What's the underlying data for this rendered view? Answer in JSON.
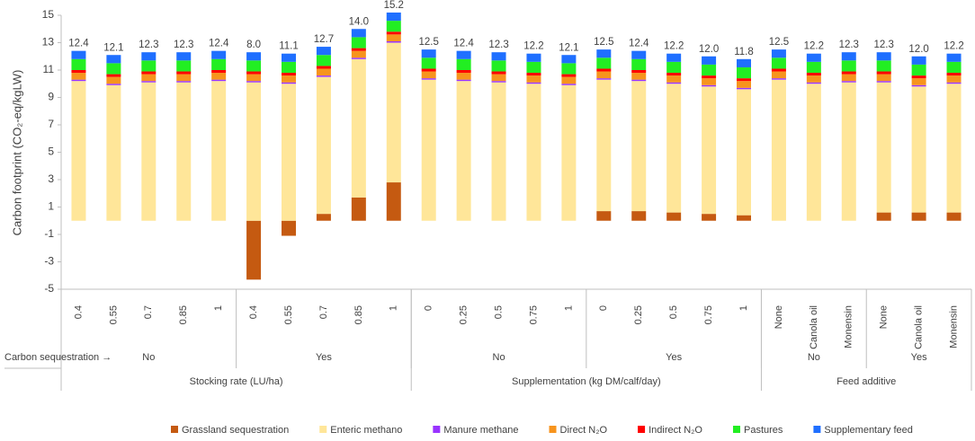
{
  "chart_data": {
    "type": "stacked_bar",
    "y_label": "Carbon footprint (CO₂-eq/kgLW)",
    "ylim": [
      -5,
      15
    ],
    "yticks": [
      -5,
      -3,
      -1,
      1,
      3,
      5,
      7,
      9,
      11,
      13,
      15
    ],
    "categories": [
      "0.4",
      "0.55",
      "0.7",
      "0.85",
      "1",
      "0.4",
      "0.55",
      "0.7",
      "0.85",
      "1",
      "0",
      "0.25",
      "0.5",
      "0.75",
      "1",
      "0",
      "0.25",
      "0.5",
      "0.75",
      "1",
      "None",
      "Canola oil",
      "Monensin",
      "None",
      "Canola oil",
      "Monensin"
    ],
    "group_axis_label": "Carbon sequestration →",
    "sequestration_groups": [
      {
        "label": "No",
        "size": 5
      },
      {
        "label": "Yes",
        "size": 5
      },
      {
        "label": "No",
        "size": 5
      },
      {
        "label": "Yes",
        "size": 5
      },
      {
        "label": "No",
        "size": 3
      },
      {
        "label": "Yes",
        "size": 3
      }
    ],
    "factor_groups": [
      {
        "label": "Stocking rate (LU/ha)",
        "size": 10
      },
      {
        "label": "Supplementation (kg DM/calf/day)",
        "size": 10
      },
      {
        "label": "Feed additive",
        "size": 6
      }
    ],
    "series": [
      {
        "name": "Grassland sequestration",
        "color": "#c55a11",
        "values": [
          0,
          0,
          0,
          0,
          0,
          -4.3,
          -1.1,
          0.5,
          1.7,
          2.8,
          0,
          0,
          0,
          0,
          0,
          0.7,
          0.7,
          0.6,
          0.5,
          0.4,
          0,
          0,
          0,
          0.6,
          0.6,
          0.6
        ]
      },
      {
        "name": "Enteric methano",
        "color": "#ffe699",
        "values": [
          10.2,
          9.9,
          10.1,
          10.1,
          10.2,
          10.1,
          10.0,
          10.0,
          10.1,
          10.2,
          10.3,
          10.2,
          10.1,
          10.0,
          9.9,
          9.6,
          9.5,
          9.4,
          9.3,
          9.2,
          10.3,
          10.0,
          10.1,
          9.5,
          9.2,
          9.4
        ]
      },
      {
        "name": "Manure methane",
        "color": "#9933ff",
        "values": [
          0.1,
          0.1,
          0.1,
          0.1,
          0.1,
          0.1,
          0.1,
          0.1,
          0.1,
          0.1,
          0.1,
          0.1,
          0.1,
          0.1,
          0.1,
          0.1,
          0.1,
          0.1,
          0.1,
          0.1,
          0.1,
          0.1,
          0.1,
          0.1,
          0.1,
          0.1
        ]
      },
      {
        "name": "Direct N₂O",
        "color": "#f7941d",
        "values": [
          0.5,
          0.5,
          0.5,
          0.5,
          0.5,
          0.5,
          0.5,
          0.5,
          0.5,
          0.5,
          0.5,
          0.5,
          0.5,
          0.5,
          0.5,
          0.5,
          0.5,
          0.5,
          0.5,
          0.5,
          0.5,
          0.5,
          0.5,
          0.5,
          0.5,
          0.5
        ]
      },
      {
        "name": "Indirect N₂O",
        "color": "#ff0000",
        "values": [
          0.2,
          0.2,
          0.2,
          0.2,
          0.2,
          0.2,
          0.2,
          0.2,
          0.2,
          0.2,
          0.2,
          0.2,
          0.2,
          0.2,
          0.2,
          0.2,
          0.2,
          0.2,
          0.2,
          0.2,
          0.2,
          0.2,
          0.2,
          0.2,
          0.2,
          0.2
        ]
      },
      {
        "name": "Pastures",
        "color": "#22ee22",
        "values": [
          0.8,
          0.8,
          0.8,
          0.8,
          0.8,
          0.8,
          0.8,
          0.8,
          0.8,
          0.8,
          0.8,
          0.8,
          0.8,
          0.8,
          0.8,
          0.8,
          0.8,
          0.8,
          0.8,
          0.8,
          0.8,
          0.8,
          0.8,
          0.8,
          0.8,
          0.8
        ]
      },
      {
        "name": "Supplementary feed",
        "color": "#1f6fff",
        "values": [
          0.6,
          0.6,
          0.6,
          0.6,
          0.6,
          0.6,
          0.6,
          0.6,
          0.6,
          0.6,
          0.6,
          0.6,
          0.6,
          0.6,
          0.6,
          0.6,
          0.6,
          0.6,
          0.6,
          0.6,
          0.6,
          0.6,
          0.6,
          0.6,
          0.6,
          0.6
        ]
      }
    ],
    "totals": [
      12.4,
      12.1,
      12.3,
      12.3,
      12.4,
      8.0,
      11.1,
      12.7,
      14.0,
      15.2,
      12.5,
      12.4,
      12.3,
      12.2,
      12.1,
      12.5,
      12.4,
      12.2,
      12.0,
      11.8,
      12.5,
      12.2,
      12.3,
      12.3,
      12.0,
      12.2
    ],
    "total_labels": [
      "12.4",
      "12.1",
      "12.3",
      "12.3",
      "12.4",
      "8.0",
      "11.1",
      "12.7",
      "14.0",
      "15.2",
      "12.5",
      "12.4",
      "12.3",
      "12.2",
      "12.1",
      "12.5",
      "12.4",
      "12.2",
      "12.0",
      "11.8",
      "12.5",
      "12.2",
      "12.3",
      "12.3",
      "12.0",
      "12.2"
    ],
    "legend": "bottom"
  }
}
